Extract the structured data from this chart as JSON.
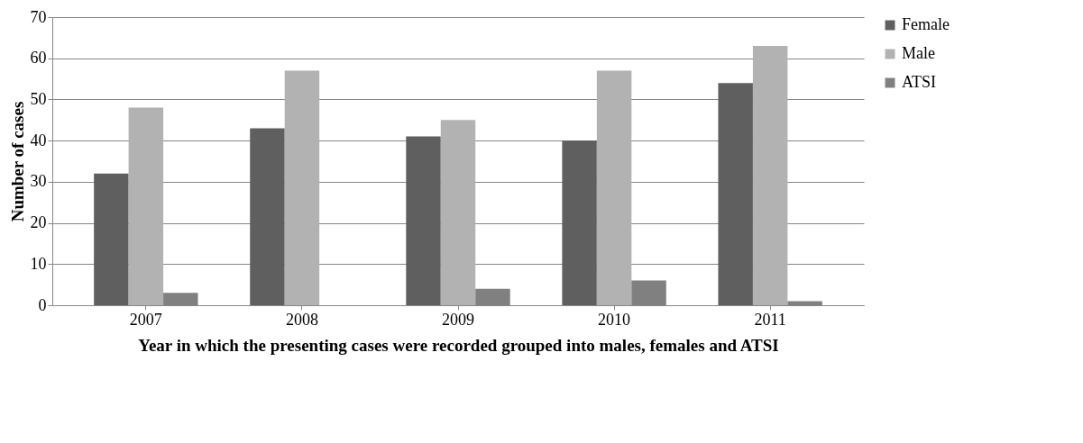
{
  "chart_data": {
    "type": "bar",
    "xlabel": "Year in which the presenting cases were recorded grouped into males, females and ATSI",
    "ylabel": "Number of cases",
    "categories": [
      "2007",
      "2008",
      "2009",
      "2010",
      "2011"
    ],
    "series": [
      {
        "name": "Female",
        "color": "#5f5f5f",
        "values": [
          32,
          43,
          41,
          40,
          54
        ]
      },
      {
        "name": "Male",
        "color": "#b2b2b2",
        "values": [
          48,
          57,
          45,
          57,
          63
        ]
      },
      {
        "name": "ATSI",
        "color": "#808080",
        "values": [
          3,
          0,
          4,
          6,
          1
        ]
      }
    ],
    "ylim": [
      0,
      70
    ],
    "yticks": [
      0,
      10,
      20,
      30,
      40,
      50,
      60,
      70
    ],
    "grid": "y",
    "legend": "right"
  }
}
